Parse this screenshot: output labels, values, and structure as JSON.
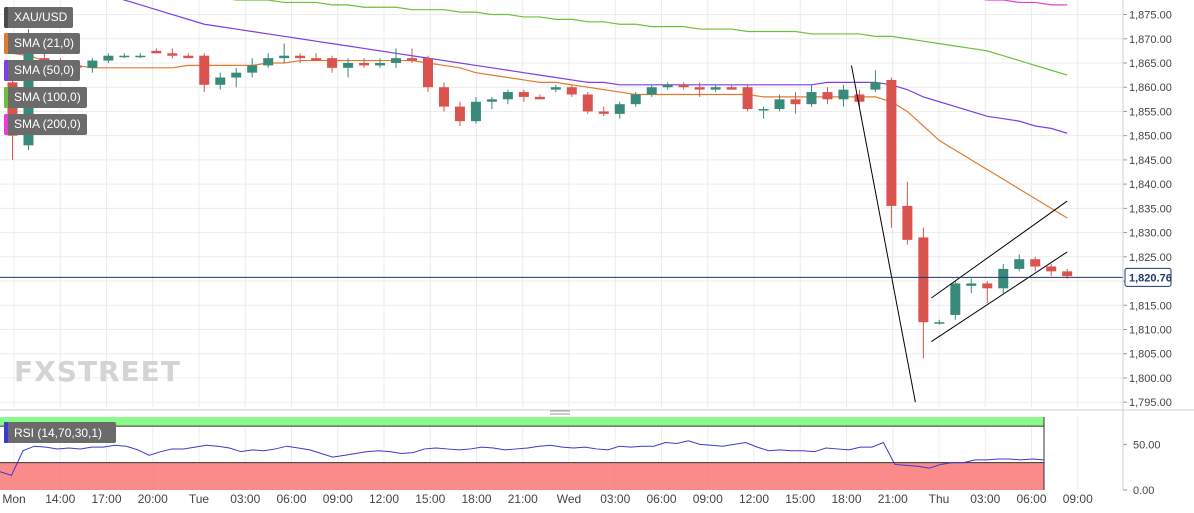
{
  "legend": {
    "symbol": "XAU/USD",
    "items": [
      {
        "label": "SMA (21,0)",
        "color": "#e07a2e"
      },
      {
        "label": "SMA (50,0)",
        "color": "#7b3fe4"
      },
      {
        "label": "SMA (100,0)",
        "color": "#6fbf3a"
      },
      {
        "label": "SMA (200,0)",
        "color": "#e53fd6"
      }
    ]
  },
  "watermark": {
    "part1": "FX",
    "part2": "STREET"
  },
  "last_price_label": "1,820.76",
  "rsi_label": "RSI (14,70,30,1)",
  "colors": {
    "up": "#3a8a7c",
    "down": "#d9534f",
    "rsi_line": "#3a3ad0",
    "rsi_overbought": "#7dfb7d",
    "rsi_oversold": "#fb7d7d",
    "price_line": "#1f3a6e"
  },
  "chart_data": [
    {
      "type": "candlestick",
      "title": "XAU/USD",
      "y_ticks": [
        "1,795.00",
        "1,800.00",
        "1,805.00",
        "1,810.00",
        "1,815.00",
        "1,820.00",
        "1,825.00",
        "1,830.00",
        "1,835.00",
        "1,840.00",
        "1,845.00",
        "1,850.00",
        "1,855.00",
        "1,860.00",
        "1,865.00",
        "1,870.00",
        "1,875.00"
      ],
      "ylim": [
        1794,
        1878
      ],
      "x_tick_labels": [
        "Mon",
        "14:00",
        "17:00",
        "20:00",
        "Tue",
        "03:00",
        "06:00",
        "09:00",
        "12:00",
        "15:00",
        "18:00",
        "21:00",
        "Wed",
        "03:00",
        "06:00",
        "09:00",
        "12:00",
        "15:00",
        "18:00",
        "21:00",
        "Thu",
        "03:00",
        "06:00",
        "09:00"
      ],
      "grid": true,
      "candles": [
        {
          "o": 1861,
          "h": 1864,
          "l": 1845,
          "c": 1850
        },
        {
          "o": 1848,
          "h": 1872,
          "l": 1847,
          "c": 1870
        },
        {
          "o": 1866,
          "h": 1868,
          "l": 1864,
          "c": 1865
        },
        {
          "o": 1865,
          "h": 1866,
          "l": 1864,
          "c": 1864.5
        },
        {
          "o": 1864.5,
          "h": 1865,
          "l": 1863.5,
          "c": 1864
        },
        {
          "o": 1864,
          "h": 1866,
          "l": 1863,
          "c": 1865.5
        },
        {
          "o": 1865.5,
          "h": 1867,
          "l": 1865,
          "c": 1866.5
        },
        {
          "o": 1866.5,
          "h": 1867,
          "l": 1866,
          "c": 1866.5
        },
        {
          "o": 1866.5,
          "h": 1867,
          "l": 1866,
          "c": 1866.5
        },
        {
          "o": 1867.5,
          "h": 1868,
          "l": 1867,
          "c": 1867
        },
        {
          "o": 1867,
          "h": 1868,
          "l": 1866,
          "c": 1866.5
        },
        {
          "o": 1866.5,
          "h": 1867,
          "l": 1866,
          "c": 1866
        },
        {
          "o": 1866.5,
          "h": 1867,
          "l": 1859,
          "c": 1860.5
        },
        {
          "o": 1860.5,
          "h": 1863,
          "l": 1859.5,
          "c": 1862
        },
        {
          "o": 1862,
          "h": 1864,
          "l": 1860,
          "c": 1863
        },
        {
          "o": 1863,
          "h": 1866,
          "l": 1862,
          "c": 1864.5
        },
        {
          "o": 1864.5,
          "h": 1867,
          "l": 1864,
          "c": 1866
        },
        {
          "o": 1866,
          "h": 1869,
          "l": 1865,
          "c": 1866.5
        },
        {
          "o": 1866.5,
          "h": 1867,
          "l": 1865,
          "c": 1866
        },
        {
          "o": 1866,
          "h": 1867,
          "l": 1865.5,
          "c": 1865.5
        },
        {
          "o": 1866,
          "h": 1866.5,
          "l": 1863,
          "c": 1864
        },
        {
          "o": 1864,
          "h": 1866,
          "l": 1862,
          "c": 1865
        },
        {
          "o": 1865,
          "h": 1866,
          "l": 1864,
          "c": 1864.5
        },
        {
          "o": 1864.5,
          "h": 1866,
          "l": 1864,
          "c": 1865
        },
        {
          "o": 1865,
          "h": 1868,
          "l": 1864,
          "c": 1866
        },
        {
          "o": 1866,
          "h": 1868,
          "l": 1865,
          "c": 1865.5
        },
        {
          "o": 1866,
          "h": 1866.5,
          "l": 1859,
          "c": 1860
        },
        {
          "o": 1860,
          "h": 1861,
          "l": 1855,
          "c": 1856
        },
        {
          "o": 1856,
          "h": 1857,
          "l": 1852,
          "c": 1853
        },
        {
          "o": 1853,
          "h": 1858,
          "l": 1852.5,
          "c": 1857
        },
        {
          "o": 1857,
          "h": 1858,
          "l": 1855.5,
          "c": 1857.5
        },
        {
          "o": 1857.5,
          "h": 1859.5,
          "l": 1856.5,
          "c": 1859
        },
        {
          "o": 1859,
          "h": 1859.5,
          "l": 1857,
          "c": 1858
        },
        {
          "o": 1858,
          "h": 1858.5,
          "l": 1857.5,
          "c": 1857.5
        },
        {
          "o": 1859.5,
          "h": 1860.5,
          "l": 1859,
          "c": 1860
        },
        {
          "o": 1860,
          "h": 1860.5,
          "l": 1858,
          "c": 1858.5
        },
        {
          "o": 1858.5,
          "h": 1859,
          "l": 1854.5,
          "c": 1855
        },
        {
          "o": 1855,
          "h": 1856,
          "l": 1854,
          "c": 1854.5
        },
        {
          "o": 1854.5,
          "h": 1857,
          "l": 1853.5,
          "c": 1856.5
        },
        {
          "o": 1856.5,
          "h": 1859,
          "l": 1856,
          "c": 1858.5
        },
        {
          "o": 1858.5,
          "h": 1860.5,
          "l": 1858,
          "c": 1860
        },
        {
          "o": 1860,
          "h": 1861,
          "l": 1859.5,
          "c": 1860.5
        },
        {
          "o": 1860.5,
          "h": 1861,
          "l": 1859.5,
          "c": 1860
        },
        {
          "o": 1860,
          "h": 1861,
          "l": 1858,
          "c": 1859.5
        },
        {
          "o": 1859.5,
          "h": 1860.5,
          "l": 1859,
          "c": 1860
        },
        {
          "o": 1860,
          "h": 1860.5,
          "l": 1859.5,
          "c": 1859.5
        },
        {
          "o": 1860,
          "h": 1860.5,
          "l": 1855,
          "c": 1855.5
        },
        {
          "o": 1855.5,
          "h": 1856,
          "l": 1853.5,
          "c": 1855.5
        },
        {
          "o": 1855.5,
          "h": 1858.5,
          "l": 1855,
          "c": 1857.5
        },
        {
          "o": 1857.5,
          "h": 1859,
          "l": 1854.5,
          "c": 1856.5
        },
        {
          "o": 1856.5,
          "h": 1860.5,
          "l": 1856,
          "c": 1859
        },
        {
          "o": 1859,
          "h": 1860,
          "l": 1856.5,
          "c": 1857.5
        },
        {
          "o": 1857.5,
          "h": 1860.5,
          "l": 1856,
          "c": 1859.5
        },
        {
          "o": 1858.5,
          "h": 1859.5,
          "l": 1856,
          "c": 1857
        },
        {
          "o": 1859.5,
          "h": 1863.5,
          "l": 1859,
          "c": 1861
        },
        {
          "o": 1861.5,
          "h": 1862,
          "l": 1831,
          "c": 1835.5
        },
        {
          "o": 1835.5,
          "h": 1840.5,
          "l": 1827.5,
          "c": 1828.5
        },
        {
          "o": 1829,
          "h": 1831,
          "l": 1804,
          "c": 1811.5
        },
        {
          "o": 1811.5,
          "h": 1812,
          "l": 1811,
          "c": 1811.5
        },
        {
          "o": 1813,
          "h": 1820,
          "l": 1812,
          "c": 1819.5
        },
        {
          "o": 1819,
          "h": 1820.5,
          "l": 1817.5,
          "c": 1819.5
        },
        {
          "o": 1819.5,
          "h": 1820,
          "l": 1815.5,
          "c": 1818.5
        },
        {
          "o": 1818.5,
          "h": 1823.5,
          "l": 1817.5,
          "c": 1822.5
        },
        {
          "o": 1822.5,
          "h": 1825.5,
          "l": 1822,
          "c": 1824.5
        },
        {
          "o": 1824.5,
          "h": 1825,
          "l": 1822,
          "c": 1823
        },
        {
          "o": 1823,
          "h": 1823.5,
          "l": 1821,
          "c": 1822
        },
        {
          "o": 1822,
          "h": 1822.5,
          "l": 1820.5,
          "c": 1821
        }
      ],
      "sma": [
        {
          "name": "SMA (21,0)",
          "values": [
            1867,
            1866.5,
            1865.5,
            1865,
            1864.5,
            1864,
            1864,
            1864,
            1864,
            1864,
            1864,
            1864.5,
            1864.5,
            1864.5,
            1864.5,
            1864.5,
            1865,
            1865,
            1865.5,
            1865.5,
            1865.5,
            1865.5,
            1865.5,
            1865.5,
            1865.5,
            1865.5,
            1865,
            1864.5,
            1864,
            1863,
            1862.5,
            1862,
            1861.5,
            1861,
            1861,
            1860.5,
            1860,
            1859.5,
            1859,
            1858.5,
            1858.5,
            1858.5,
            1858.5,
            1858.5,
            1858.5,
            1858.5,
            1858.5,
            1858,
            1858,
            1858,
            1858,
            1858,
            1858,
            1858,
            1858,
            1857,
            1855,
            1852,
            1849,
            1847,
            1845,
            1843,
            1841,
            1839,
            1837,
            1835,
            1833
          ]
        },
        {
          "name": "SMA (50,0)",
          "values": [
            1885,
            1884,
            1883,
            1882,
            1881,
            1880,
            1879,
            1878,
            1877,
            1876,
            1875,
            1874,
            1873,
            1872.5,
            1872,
            1871.5,
            1871,
            1870.5,
            1870,
            1869.5,
            1869,
            1868.5,
            1868,
            1867.5,
            1867,
            1866.5,
            1866,
            1865.5,
            1865,
            1864.5,
            1864,
            1863.5,
            1863,
            1862.5,
            1862,
            1861.5,
            1861,
            1861,
            1860.5,
            1860.5,
            1860.5,
            1860.5,
            1860.5,
            1860.5,
            1860.5,
            1860.5,
            1860.5,
            1860.5,
            1860.5,
            1860.5,
            1860.5,
            1861,
            1861,
            1861,
            1861,
            1860.5,
            1859.5,
            1858,
            1857,
            1856,
            1855,
            1854,
            1853.5,
            1853,
            1852,
            1851.5,
            1850.5
          ]
        },
        {
          "name": "SMA (100,0)",
          "values": [
            1881,
            1881,
            1880.5,
            1880.5,
            1880,
            1880,
            1879.5,
            1879.5,
            1879,
            1879,
            1879,
            1878.5,
            1878.5,
            1878.5,
            1878,
            1878,
            1878,
            1877.5,
            1877.5,
            1877.5,
            1877,
            1877,
            1876.5,
            1876.5,
            1876.5,
            1876,
            1876,
            1876,
            1875.5,
            1875.5,
            1875,
            1875,
            1874.5,
            1874.5,
            1874,
            1874,
            1873.5,
            1873.5,
            1873,
            1873,
            1872.5,
            1872.5,
            1872.5,
            1872,
            1872,
            1872,
            1871.5,
            1871.5,
            1871.5,
            1871.5,
            1871,
            1871,
            1871,
            1871,
            1870.5,
            1870.5,
            1870,
            1869.5,
            1869,
            1868.5,
            1868,
            1867.5,
            1866.5,
            1865.5,
            1864.5,
            1863.5,
            1862.5
          ]
        },
        {
          "name": "SMA (200,0)",
          "values": [
            1888,
            1888,
            1888,
            1888,
            1888,
            1888,
            1888,
            1888,
            1888,
            1888,
            1888,
            1888,
            1888,
            1888,
            1888,
            1888,
            1888,
            1888,
            1888,
            1888,
            1888,
            1888,
            1888,
            1888,
            1888,
            1888,
            1888,
            1888,
            1888,
            1888,
            1888,
            1888,
            1888,
            1888,
            1888,
            1888,
            1888,
            1888,
            1888,
            1888,
            1888,
            1888,
            1888,
            1888,
            1888,
            1888,
            1888,
            1888,
            1888,
            1888,
            1888,
            1888,
            1888,
            1888,
            1888,
            1888,
            1880,
            1879.5,
            1879,
            1878.5,
            1878.5,
            1878,
            1878,
            1877.5,
            1877.5,
            1877,
            1877
          ]
        }
      ],
      "last_price": 1820.76,
      "trendlines": [
        {
          "from": [
            52.5,
            1864.5
          ],
          "to": [
            56.5,
            1795
          ]
        },
        {
          "from": [
            57.5,
            1816.5
          ],
          "to": [
            66,
            1836.5
          ]
        },
        {
          "from": [
            57.5,
            1807.5
          ],
          "to": [
            66,
            1826
          ]
        }
      ]
    },
    {
      "type": "line",
      "title": "RSI (14,70,30,1)",
      "y_ticks": [
        "0.00",
        "50.00"
      ],
      "ylim": [
        0,
        80
      ],
      "overbought": 70,
      "oversold": 30,
      "values": [
        20,
        16,
        43,
        48,
        47,
        45,
        46,
        45,
        47,
        47,
        49,
        48,
        44,
        38,
        42,
        45,
        45,
        47,
        49,
        48,
        46,
        42,
        44,
        43,
        45,
        48,
        46,
        44,
        40,
        36,
        38,
        40,
        42,
        43,
        42,
        40,
        41,
        45,
        46,
        45,
        44,
        45,
        47,
        46,
        44,
        45,
        46,
        48,
        49,
        47,
        46,
        47,
        45,
        44,
        48,
        47,
        48,
        48,
        52,
        51,
        54,
        50,
        49,
        48,
        50,
        52,
        47,
        43,
        44,
        43,
        43,
        42,
        46,
        45,
        44,
        47,
        47,
        52,
        28,
        27,
        26,
        24,
        28,
        30,
        30,
        33,
        33,
        34,
        34,
        33,
        34,
        33
      ]
    }
  ]
}
